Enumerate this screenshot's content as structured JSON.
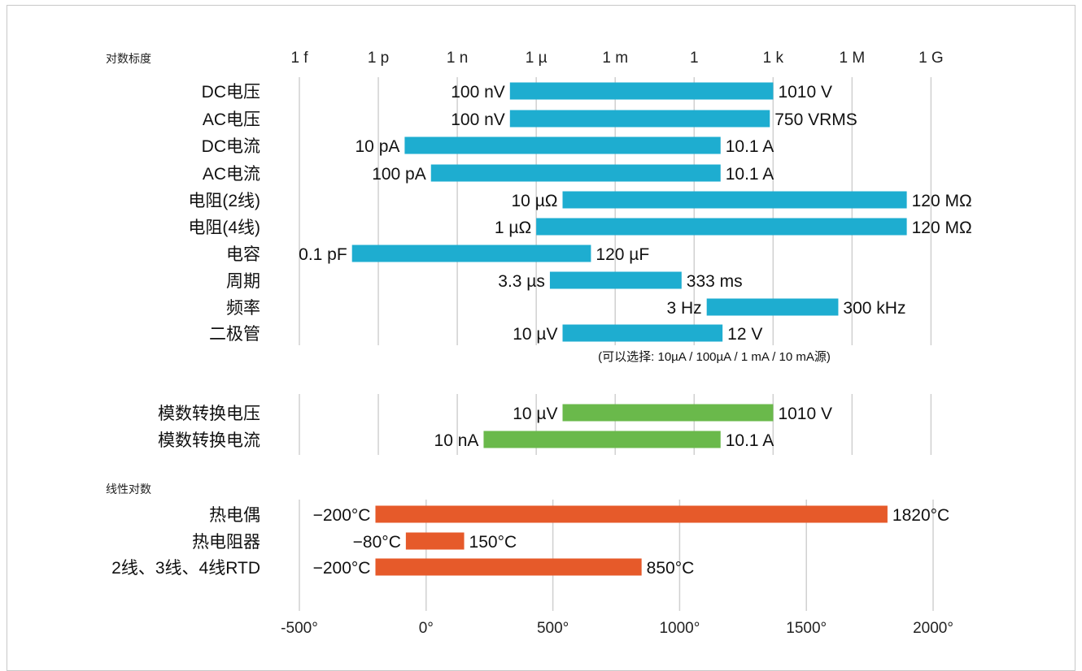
{
  "chart_data": {
    "type": "bar",
    "colors": {
      "standard": "#1eadd0",
      "adc": "#6ab94b",
      "temperature": "#e65a2a",
      "grid": "#d0d0d0"
    },
    "log_section": {
      "scale_label": "对数标度",
      "scale": "log",
      "ticks": [
        "1 f",
        "1 p",
        "1 n",
        "1 µ",
        "1 m",
        "1",
        "1 k",
        "1 M",
        "1 G"
      ],
      "tick_exponents": [
        -15,
        -12,
        -9,
        -6,
        -3,
        0,
        3,
        6,
        9
      ],
      "grid": true,
      "rows": [
        {
          "label": "DC电压",
          "min": 1e-07,
          "max": 1010,
          "min_label": "100 nV",
          "max_label": "1010 V"
        },
        {
          "label": "AC电压",
          "min": 1e-07,
          "max": 750,
          "min_label": "100 nV",
          "max_label": "750 VRMS"
        },
        {
          "label": "DC电流",
          "min": 1e-11,
          "max": 10.1,
          "min_label": "10 pA",
          "max_label": "10.1 A"
        },
        {
          "label": "AC电流",
          "min": 1e-10,
          "max": 10.1,
          "min_label": "100 pA",
          "max_label": "10.1 A"
        },
        {
          "label": "电阻(2线)",
          "min": 1e-05,
          "max": 120000000.0,
          "min_label": "10 µΩ",
          "max_label": "120 MΩ"
        },
        {
          "label": "电阻(4线)",
          "min": 1e-06,
          "max": 120000000.0,
          "min_label": "1 µΩ",
          "max_label": "120 MΩ"
        },
        {
          "label": "电容",
          "min": 1e-13,
          "max": 0.00012,
          "min_label": "0.1 pF",
          "max_label": "120 µF"
        },
        {
          "label": "周期",
          "min": 3.3e-06,
          "max": 0.333,
          "min_label": "3.3 µs",
          "max_label": "333 ms"
        },
        {
          "label": "频率",
          "min": 3,
          "max": 300000.0,
          "min_label": "3 Hz",
          "max_label": "300 kHz"
        },
        {
          "label": "二极管",
          "min": 1e-05,
          "max": 12,
          "min_label": "10 µV",
          "max_label": "12 V"
        }
      ],
      "note": "(可以选择: 10µA / 100µA / 1 mA / 10 mA源)"
    },
    "adc_section": {
      "rows": [
        {
          "label": "模数转换电压",
          "min": 1e-05,
          "max": 1010,
          "min_label": "10 µV",
          "max_label": "1010 V"
        },
        {
          "label": "模数转换电流",
          "min": 1e-08,
          "max": 10.1,
          "min_label": "10 nA",
          "max_label": "10.1 A"
        }
      ]
    },
    "linear_section": {
      "scale_label": "线性对数",
      "scale": "linear",
      "xlim": [
        -500,
        2000
      ],
      "ticks": [
        "-500°",
        "0°",
        "500°",
        "1000°",
        "1500°",
        "2000°"
      ],
      "tick_values": [
        -500,
        0,
        500,
        1000,
        1500,
        2000
      ],
      "grid": true,
      "rows": [
        {
          "label": "热电偶",
          "min": -200,
          "max": 1820,
          "min_label": "−200°C",
          "max_label": "1820°C"
        },
        {
          "label": "热电阻器",
          "min": -80,
          "max": 150,
          "min_label": "−80°C",
          "max_label": "150°C"
        },
        {
          "label": "2线、3线、4线RTD",
          "min": -200,
          "max": 850,
          "min_label": "−200°C",
          "max_label": "850°C"
        }
      ]
    }
  }
}
